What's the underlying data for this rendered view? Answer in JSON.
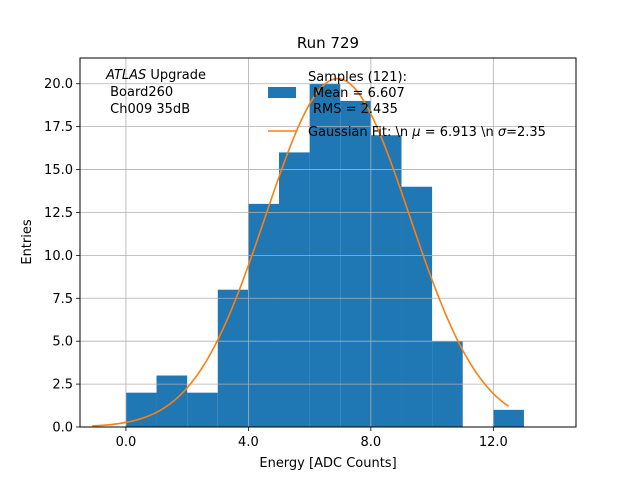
{
  "chart_data": {
    "type": "bar",
    "title": "Run 729",
    "xlabel": "Energy [ADC Counts]",
    "ylabel": "Entries",
    "xlim": [
      -1.5,
      14.7
    ],
    "ylim": [
      0,
      21.5
    ],
    "xticks": [
      0,
      4,
      8,
      12
    ],
    "xtick_labels": [
      "0.0",
      "4.0",
      "8.0",
      "12.0"
    ],
    "yticks": [
      0,
      2.5,
      5,
      7.5,
      10,
      12.5,
      15,
      17.5,
      20
    ],
    "ytick_labels": [
      "0.0",
      "2.5",
      "5.0",
      "7.5",
      "10.0",
      "12.5",
      "15.0",
      "17.5",
      "20.0"
    ],
    "grid": true,
    "histogram": {
      "name": "Samples (121):",
      "color": "#1f77b4",
      "bin_edges": [
        0,
        1,
        2,
        3,
        4,
        5,
        6,
        7,
        8,
        9,
        10,
        11,
        12,
        13
      ],
      "counts": [
        2,
        3,
        2,
        8,
        13,
        16,
        20,
        19,
        17,
        14,
        5,
        0,
        1
      ],
      "legend_lines": [
        "Samples (121):",
        "Mean = 6.607",
        "RMS = 2.435"
      ]
    },
    "fit": {
      "name": "Gaussian Fit: \\n $\\mu$ = 6.913 \\n $\\sigma$=2.35",
      "legend_prefix": "Gaussian Fit: \\n ",
      "legend_mu": "μ",
      "legend_mid": " = 6.913 \\n ",
      "legend_sigma": "σ",
      "legend_suffix": "=2.35",
      "color": "#ff7f0e",
      "mu": 6.913,
      "sigma": 2.35,
      "amplitude": 20.3,
      "x_range": [
        -1.1,
        12.5
      ]
    },
    "annotation": {
      "italic": "ATLAS",
      "rest": " Upgrade",
      "line2": " Board260",
      "line3": " Ch009 35dB"
    }
  }
}
